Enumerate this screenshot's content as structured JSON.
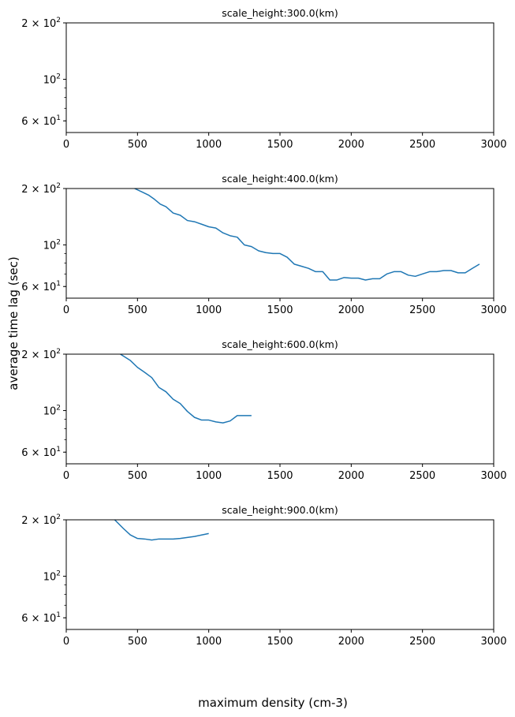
{
  "figure": {
    "ylabel": "average time lag (sec)",
    "xlabel": "maximum density (cm-3)"
  },
  "chart_data": [
    {
      "type": "line",
      "title": "scale_height:300.0(km)",
      "xlim": [
        0,
        3000
      ],
      "ylim": [
        52,
        200
      ],
      "yscale": "log",
      "xticks": [
        "0",
        "500",
        "1000",
        "1500",
        "2000",
        "2500",
        "3000"
      ],
      "yticks": [
        "2 × 10^2",
        "10^2",
        "6 × 10^1"
      ],
      "color": "#1f77b4",
      "x": [],
      "y": []
    },
    {
      "type": "line",
      "title": "scale_height:400.0(km)",
      "xlim": [
        0,
        3000
      ],
      "ylim": [
        52,
        200
      ],
      "yscale": "log",
      "xticks": [
        "0",
        "500",
        "1000",
        "1500",
        "2000",
        "2500",
        "3000"
      ],
      "yticks": [
        "2 × 10^2",
        "10^2",
        "6 × 10^1"
      ],
      "color": "#1f77b4",
      "x": [
        480,
        530,
        580,
        620,
        660,
        700,
        750,
        800,
        850,
        900,
        950,
        1000,
        1050,
        1100,
        1150,
        1200,
        1250,
        1300,
        1350,
        1400,
        1450,
        1500,
        1550,
        1600,
        1650,
        1700,
        1750,
        1800,
        1850,
        1900,
        1950,
        2000,
        2050,
        2100,
        2150,
        2200,
        2250,
        2300,
        2350,
        2400,
        2450,
        2500,
        2550,
        2600,
        2650,
        2700,
        2750,
        2800,
        2850,
        2900
      ],
      "y": [
        200,
        192,
        184,
        175,
        165,
        160,
        148,
        144,
        135,
        133,
        129,
        125,
        123,
        116,
        112,
        110,
        100,
        98,
        93,
        91,
        90,
        90,
        86,
        79,
        77,
        75,
        72,
        72,
        65,
        65,
        67,
        66.5,
        66.5,
        65,
        66,
        66,
        70,
        72,
        72,
        69,
        68,
        70,
        72,
        72,
        73,
        73,
        71,
        71,
        75,
        79
      ]
    },
    {
      "type": "line",
      "title": "scale_height:600.0(km)",
      "xlim": [
        0,
        3000
      ],
      "ylim": [
        52,
        200
      ],
      "yscale": "log",
      "xticks": [
        "0",
        "500",
        "1000",
        "1500",
        "2000",
        "2500",
        "3000"
      ],
      "yticks": [
        "2 × 10^2",
        "10^2",
        "6 × 10^1"
      ],
      "color": "#1f77b4",
      "x": [
        380,
        450,
        500,
        550,
        600,
        650,
        700,
        750,
        800,
        850,
        900,
        950,
        1000,
        1050,
        1100,
        1150,
        1200,
        1250,
        1300
      ],
      "y": [
        200,
        185,
        170,
        160,
        150,
        133,
        126,
        115,
        109,
        99,
        92,
        89,
        89,
        87,
        86,
        88,
        94,
        94,
        94
      ]
    },
    {
      "type": "line",
      "title": "scale_height:900.0(km)",
      "xlim": [
        0,
        3000
      ],
      "ylim": [
        52,
        200
      ],
      "yscale": "log",
      "xticks": [
        "0",
        "500",
        "1000",
        "1500",
        "2000",
        "2500",
        "3000"
      ],
      "yticks": [
        "2 × 10^2",
        "10^2",
        "6 × 10^1"
      ],
      "color": "#1f77b4",
      "x": [
        340,
        400,
        450,
        500,
        550,
        600,
        650,
        700,
        750,
        800,
        850,
        900,
        950,
        1000
      ],
      "y": [
        200,
        180,
        166,
        159,
        158,
        156,
        158,
        158,
        158,
        159,
        161,
        163,
        166,
        169
      ]
    }
  ]
}
